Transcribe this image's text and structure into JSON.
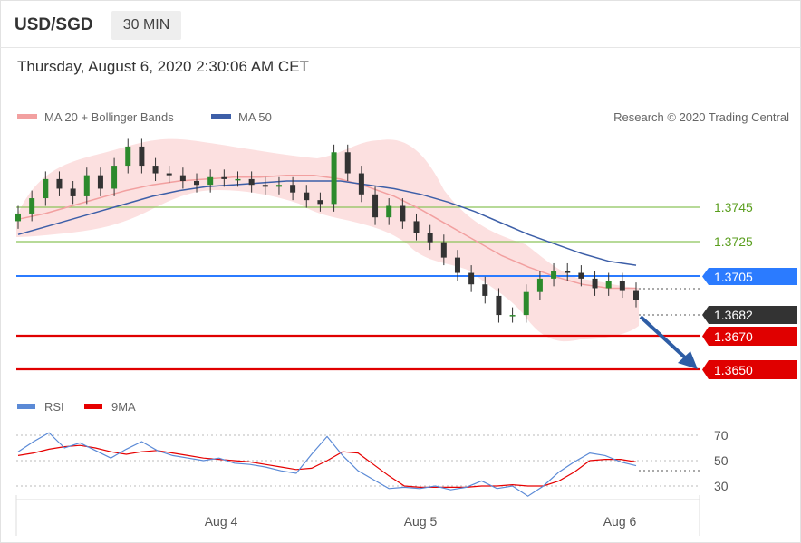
{
  "header": {
    "pair": "USD/SGD",
    "timeframe": "30 MIN",
    "datetime": "Thursday, August 6, 2020 2:30:06 AM CET"
  },
  "legend": {
    "ma20_label": "MA 20 + Bollinger Bands",
    "ma50_label": "MA 50",
    "credit": "Research © 2020 Trading Central",
    "rsi_label": "RSI",
    "ma9_label": "9MA"
  },
  "colors": {
    "ma20": "#f2a0a0",
    "band": "#fbdada",
    "ma50": "#3d5fa8",
    "resistance_blue": "#2b7bff",
    "target_red": "#e00000",
    "pivot_green": "#8cc45a",
    "green_text": "#5a9e1e",
    "candle": "#333333",
    "arrow": "#2e5da5",
    "rsi": "#5b8ad6",
    "rsi_ma": "#e60000"
  },
  "chart_data": [
    {
      "type": "candlestick",
      "y_range": [
        1.364,
        1.377
      ],
      "series": [
        {
          "name": "MA 20 + Bollinger Bands",
          "values": [
            1.3724,
            1.3727,
            1.3731,
            1.3735,
            1.3739,
            1.3742,
            1.3744,
            1.3745,
            1.3746,
            1.3746,
            1.3747,
            1.3747,
            1.3745,
            1.3741,
            1.3736,
            1.3729,
            1.3721,
            1.3713,
            1.3705,
            1.3699,
            1.3694,
            1.369,
            1.3688,
            1.3688
          ]
        },
        {
          "name": "MA 50",
          "values": [
            1.3716,
            1.372,
            1.3724,
            1.3728,
            1.3732,
            1.3736,
            1.3739,
            1.3741,
            1.3742,
            1.3743,
            1.3744,
            1.3744,
            1.3744,
            1.3742,
            1.374,
            1.3737,
            1.3733,
            1.3728,
            1.3722,
            1.3716,
            1.3711,
            1.3706,
            1.3702,
            1.37
          ]
        }
      ],
      "close": [
        1.3727,
        1.3735,
        1.3745,
        1.374,
        1.3736,
        1.3747,
        1.374,
        1.3752,
        1.3762,
        1.3752,
        1.3748,
        1.3747,
        1.3744,
        1.3742,
        1.3746,
        1.3745,
        1.3745,
        1.3742,
        1.3741,
        1.3742,
        1.3738,
        1.3734,
        1.3732,
        1.3759,
        1.3748,
        1.3737,
        1.3725,
        1.3731,
        1.3723,
        1.3717,
        1.3712,
        1.3704,
        1.3696,
        1.369,
        1.3684,
        1.3674,
        1.3674,
        1.3686,
        1.3693,
        1.3697,
        1.3696,
        1.3693,
        1.3688,
        1.3692,
        1.3687,
        1.3682
      ],
      "levels": [
        {
          "label": "1.3745",
          "value": 1.3745,
          "kind": "pivot"
        },
        {
          "label": "1.3725",
          "value": 1.3725,
          "kind": "pivot"
        },
        {
          "label": "1.3705",
          "value": 1.3705,
          "kind": "resistance"
        },
        {
          "label": "1.3682",
          "value": 1.3682,
          "kind": "last"
        },
        {
          "label": "1.3670",
          "value": 1.367,
          "kind": "support"
        },
        {
          "label": "1.3650",
          "value": 1.365,
          "kind": "support"
        }
      ],
      "x_tick_labels": [
        "Aug 4",
        "Aug 5",
        "Aug 6"
      ]
    },
    {
      "type": "line",
      "y_range": [
        20,
        80
      ],
      "y_ticks": [
        70,
        50,
        30
      ],
      "series": [
        {
          "name": "RSI",
          "values": [
            57,
            65,
            72,
            60,
            64,
            58,
            52,
            59,
            65,
            58,
            54,
            52,
            50,
            52,
            48,
            47,
            45,
            42,
            40,
            55,
            69,
            54,
            42,
            35,
            28,
            29,
            28,
            30,
            27,
            29,
            34,
            28,
            30,
            22,
            30,
            41,
            49,
            56,
            54,
            49,
            46
          ]
        },
        {
          "name": "9MA",
          "values": [
            54,
            56,
            59,
            61,
            62,
            60,
            57,
            55,
            57,
            58,
            56,
            54,
            52,
            51,
            50,
            49,
            47,
            45,
            43,
            44,
            50,
            57,
            56,
            47,
            38,
            30,
            29,
            29,
            29,
            29,
            30,
            30,
            31,
            30,
            30,
            34,
            41,
            50,
            51,
            51,
            49
          ]
        }
      ]
    }
  ]
}
